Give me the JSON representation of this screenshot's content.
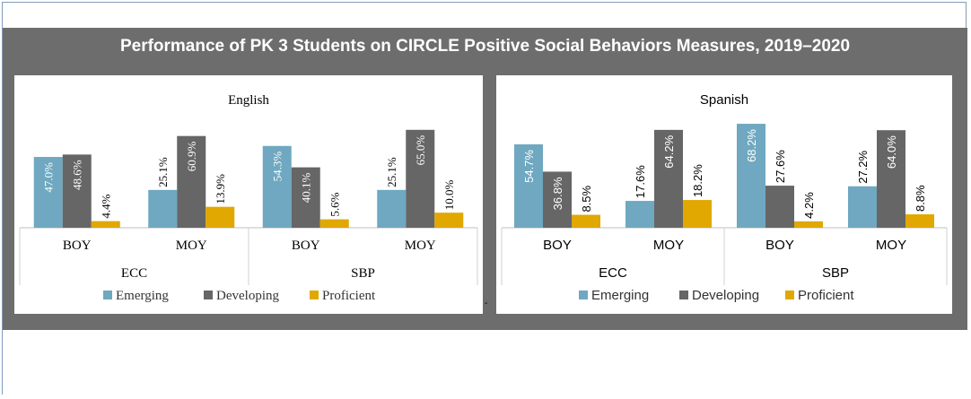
{
  "title": "Performance of PK 3 Students on CIRCLE Positive Social Behaviors Measures, 2019–2020",
  "colors": {
    "Emerging": "#6fa8c0",
    "Developing": "#666666",
    "Proficient": "#e0a800",
    "banner": "#6d6d6d"
  },
  "chart_data": [
    {
      "type": "bar",
      "title": "English",
      "groups": [
        "ECC",
        "SBP"
      ],
      "categories": [
        "BOY",
        "MOY",
        "BOY",
        "MOY"
      ],
      "category_groups": [
        "ECC",
        "ECC",
        "SBP",
        "SBP"
      ],
      "series": [
        {
          "name": "Emerging",
          "values": [
            47.0,
            25.1,
            54.3,
            25.1
          ],
          "labels": [
            "47.0%",
            "25.1%",
            "54.3%",
            "25.1%"
          ]
        },
        {
          "name": "Developing",
          "values": [
            48.6,
            60.9,
            40.1,
            65.0
          ],
          "labels": [
            "48.6%",
            "60.9%",
            "40.1%",
            "65.0%"
          ]
        },
        {
          "name": "Proficient",
          "values": [
            4.4,
            13.9,
            5.6,
            10.0
          ],
          "labels": [
            "4.4%",
            "13.9%",
            "5.6%",
            "10.0%"
          ]
        }
      ],
      "ylim": [
        0,
        70
      ],
      "legend": "bottom",
      "font": "serif"
    },
    {
      "type": "bar",
      "title": "Spanish",
      "groups": [
        "ECC",
        "SBP"
      ],
      "categories": [
        "BOY",
        "MOY",
        "BOY",
        "MOY"
      ],
      "category_groups": [
        "ECC",
        "ECC",
        "SBP",
        "SBP"
      ],
      "series": [
        {
          "name": "Emerging",
          "values": [
            54.7,
            17.6,
            68.2,
            27.2
          ],
          "labels": [
            "54.7%",
            "17.6%",
            "68.2%",
            "27.2%"
          ]
        },
        {
          "name": "Developing",
          "values": [
            36.8,
            64.2,
            27.6,
            64.0
          ],
          "labels": [
            "36.8%",
            "64.2%",
            "27.6%",
            "64.0%"
          ]
        },
        {
          "name": "Proficient",
          "values": [
            8.5,
            18.2,
            4.2,
            8.8
          ],
          "labels": [
            "8.5%",
            "18.2%",
            "4.2%",
            "8.8%"
          ]
        }
      ],
      "ylim": [
        0,
        70
      ],
      "legend": "bottom",
      "font": "sans"
    }
  ]
}
